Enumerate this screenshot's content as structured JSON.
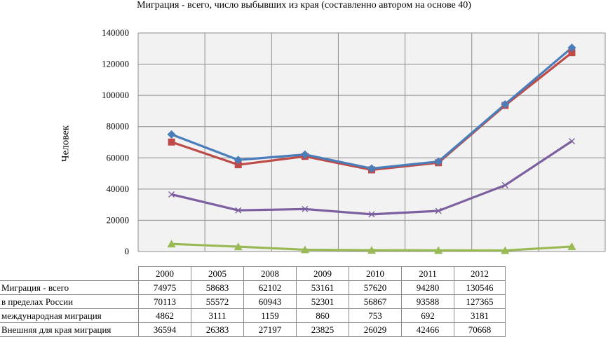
{
  "chart_data": {
    "type": "line",
    "title": "Миграция - всего, число выбывших из края (составленно автором на основе 40)",
    "ylabel": "Человек",
    "xlabel": "",
    "ylim": [
      0,
      140000
    ],
    "yticks": [
      "0",
      "20000",
      "40000",
      "60000",
      "80000",
      "100000",
      "120000",
      "140000"
    ],
    "grid": true,
    "legend": "data table below plot",
    "categories": [
      "2000",
      "2005",
      "2008",
      "2009",
      "2010",
      "2011",
      "2012"
    ],
    "series": [
      {
        "name": "Миграция - всего",
        "values": [
          74975,
          58683,
          62102,
          53161,
          57620,
          94280,
          130546
        ],
        "color": "#4a7ebb",
        "marker": "diamond"
      },
      {
        "name": "в пределах России",
        "values": [
          70113,
          55572,
          60943,
          52301,
          56867,
          93588,
          127365
        ],
        "color": "#be4b48",
        "marker": "square"
      },
      {
        "name": "международная миграция",
        "values": [
          4862,
          3111,
          1159,
          860,
          753,
          692,
          3181
        ],
        "color": "#98b954",
        "marker": "triangle"
      },
      {
        "name": "Внешняя для края миграция",
        "values": [
          36594,
          26383,
          27197,
          23825,
          26029,
          42466,
          70668
        ],
        "color": "#7d60a0",
        "marker": "x"
      }
    ]
  }
}
